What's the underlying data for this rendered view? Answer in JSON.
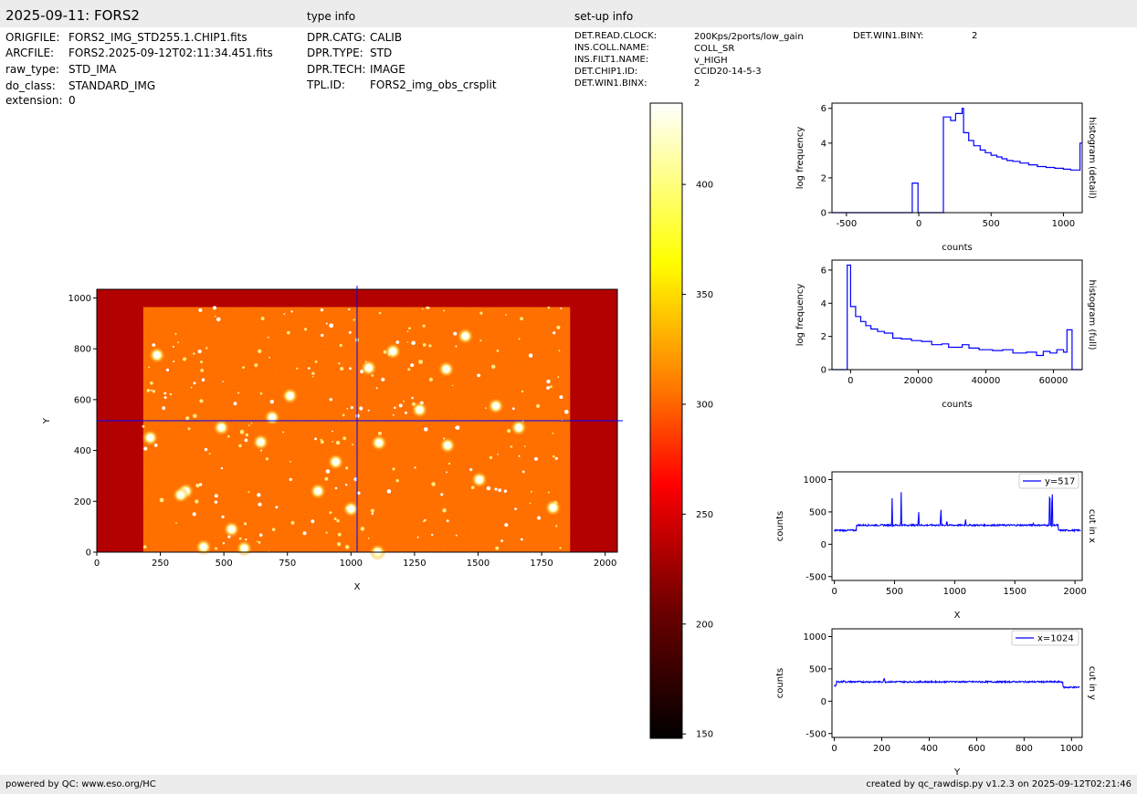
{
  "header": {
    "title": "2025-09-11: FORS2",
    "type_info_heading": "type info",
    "setup_info_heading": "set-up info"
  },
  "file_info": [
    {
      "key": "ORIGFILE:",
      "value": "FORS2_IMG_STD255.1.CHIP1.fits"
    },
    {
      "key": "ARCFILE:",
      "value": "FORS2.2025-09-12T02:11:34.451.fits"
    },
    {
      "key": "raw_type:",
      "value": "STD_IMA"
    },
    {
      "key": "do_class:",
      "value": "STANDARD_IMG"
    },
    {
      "key": "extension:",
      "value": "0"
    }
  ],
  "type_info": [
    {
      "key": "DPR.CATG:",
      "value": "CALIB"
    },
    {
      "key": "DPR.TYPE:",
      "value": "STD"
    },
    {
      "key": "DPR.TECH:",
      "value": "IMAGE"
    },
    {
      "key": "TPL.ID:",
      "value": "FORS2_img_obs_crsplit"
    }
  ],
  "setup_info": [
    {
      "key": "DET.READ.CLOCK:",
      "value": "200Kps/2ports/low_gain"
    },
    {
      "key": "INS.COLL.NAME:",
      "value": "COLL_SR"
    },
    {
      "key": "INS.FILT1.NAME:",
      "value": "v_HIGH"
    },
    {
      "key": "DET.CHIP1.ID:",
      "value": "CCID20-14-5-3"
    },
    {
      "key": "DET.WIN1.BINX:",
      "value": "2"
    }
  ],
  "setup_info_extra": {
    "key": "DET.WIN1.BINY:",
    "value": "2"
  },
  "footer": {
    "left": "powered by QC: www.eso.org/HC",
    "right": "created by qc_rawdisp.py v1.2.3 on 2025-09-12T02:21:46"
  },
  "colors": {
    "band": "#ececec",
    "series": "#0000ff",
    "image_border": "#b30000",
    "image_bg": "#ff6a00"
  },
  "chart_data": [
    {
      "id": "image",
      "type": "heatmap",
      "xlabel": "X",
      "ylabel": "Y",
      "xlim": [
        0,
        2048
      ],
      "ylim": [
        0,
        1034
      ],
      "xticks": [
        0,
        250,
        500,
        750,
        1000,
        1250,
        1500,
        1750,
        2000
      ],
      "yticks": [
        0,
        200,
        400,
        600,
        800,
        1000
      ],
      "illuminated_x": [
        183,
        1862
      ],
      "illuminated_y": [
        0,
        964
      ],
      "crosshair": {
        "x": 1024,
        "y": 517
      },
      "stars": [
        [
          237,
          775
        ],
        [
          490,
          490
        ],
        [
          645,
          433
        ],
        [
          690,
          530
        ],
        [
          350,
          240
        ],
        [
          870,
          240
        ],
        [
          940,
          355
        ],
        [
          1070,
          725
        ],
        [
          1165,
          790
        ],
        [
          1375,
          720
        ],
        [
          1450,
          850
        ],
        [
          1660,
          490
        ],
        [
          1795,
          175
        ],
        [
          1110,
          430
        ],
        [
          530,
          90
        ],
        [
          420,
          20
        ],
        [
          1505,
          285
        ],
        [
          1570,
          575
        ],
        [
          330,
          225
        ],
        [
          760,
          615
        ],
        [
          1270,
          560
        ],
        [
          1380,
          420
        ],
        [
          1000,
          170
        ],
        [
          210,
          450
        ],
        [
          580,
          15
        ],
        [
          1105,
          0
        ]
      ]
    },
    {
      "id": "colorbar",
      "type": "heatmap",
      "range": [
        148,
        437
      ],
      "ticks": [
        150,
        200,
        250,
        300,
        350,
        400
      ],
      "colormap": "hot"
    },
    {
      "id": "hist_detail",
      "type": "line",
      "xlabel": "counts",
      "ylabel": "log frequency",
      "right_label": "histogram (detail)",
      "xlim": [
        -600,
        1130
      ],
      "ylim": [
        0,
        6.3
      ],
      "xticks": [
        -500,
        0,
        500,
        1000
      ],
      "yticks": [
        0,
        2,
        4,
        6
      ],
      "series": [
        {
          "step": true,
          "x": [
            -600,
            -45,
            -45,
            -5,
            -5,
            170,
            170,
            220,
            220,
            255,
            255,
            300,
            300,
            310,
            310,
            345,
            345,
            380,
            380,
            425,
            425,
            460,
            460,
            500,
            500,
            540,
            540,
            575,
            575,
            610,
            610,
            650,
            650,
            700,
            700,
            760,
            760,
            820,
            820,
            880,
            880,
            940,
            940,
            1000,
            1000,
            1050,
            1050,
            1100,
            1100,
            1115,
            1115,
            1130
          ],
          "y": [
            0,
            0,
            1.7,
            1.7,
            0,
            0,
            5.5,
            5.5,
            5.3,
            5.3,
            5.7,
            5.7,
            6.0,
            6.0,
            4.6,
            4.6,
            4.15,
            4.15,
            3.85,
            3.85,
            3.6,
            3.6,
            3.45,
            3.45,
            3.3,
            3.3,
            3.2,
            3.2,
            3.1,
            3.1,
            3.0,
            3.0,
            2.95,
            2.95,
            2.85,
            2.85,
            2.75,
            2.75,
            2.65,
            2.65,
            2.6,
            2.6,
            2.55,
            2.55,
            2.5,
            2.5,
            2.45,
            2.45,
            2.45,
            2.45,
            4.0,
            4.0
          ]
        }
      ]
    },
    {
      "id": "hist_full",
      "type": "line",
      "xlabel": "counts",
      "ylabel": "log frequency",
      "right_label": "histogram (full)",
      "xlim": [
        -5500,
        68500
      ],
      "ylim": [
        0,
        6.6
      ],
      "xticks": [
        0,
        20000,
        40000,
        60000
      ],
      "yticks": [
        0,
        2,
        4,
        6
      ],
      "series": [
        {
          "step": true,
          "x": [
            -5500,
            -1000,
            -1000,
            0,
            0,
            1500,
            1500,
            3000,
            3000,
            4500,
            4500,
            6000,
            6000,
            8000,
            8000,
            10000,
            10000,
            12500,
            12500,
            15000,
            15000,
            18000,
            18000,
            21000,
            21000,
            24000,
            24000,
            27000,
            27000,
            29000,
            29000,
            33000,
            33000,
            35000,
            35000,
            38000,
            38000,
            42000,
            42000,
            45000,
            45000,
            48000,
            48000,
            52000,
            52000,
            55000,
            55000,
            57000,
            57000,
            59000,
            59000,
            61000,
            61000,
            63000,
            63000,
            64000,
            64000,
            65500,
            65500,
            68500
          ],
          "y": [
            0,
            0,
            6.3,
            6.3,
            3.8,
            3.8,
            3.2,
            3.2,
            2.9,
            2.9,
            2.65,
            2.65,
            2.45,
            2.45,
            2.3,
            2.3,
            2.2,
            2.2,
            1.9,
            1.9,
            1.85,
            1.85,
            1.75,
            1.75,
            1.7,
            1.7,
            1.5,
            1.5,
            1.55,
            1.55,
            1.35,
            1.35,
            1.5,
            1.5,
            1.3,
            1.3,
            1.2,
            1.2,
            1.15,
            1.15,
            1.2,
            1.2,
            1.0,
            1.0,
            1.05,
            1.05,
            0.85,
            0.85,
            1.1,
            1.1,
            1.0,
            1.0,
            1.2,
            1.2,
            1.05,
            1.05,
            2.4,
            2.4,
            0,
            0
          ]
        }
      ]
    },
    {
      "id": "cut_x",
      "type": "line",
      "xlabel": "X",
      "ylabel": "counts",
      "right_label": "cut in x",
      "legend": "y=517",
      "legend_position": "top-right",
      "xlim": [
        -20,
        2060
      ],
      "ylim": [
        -560,
        1120
      ],
      "xticks": [
        0,
        500,
        1000,
        1500,
        2000
      ],
      "yticks": [
        -500,
        0,
        500,
        1000
      ],
      "baseline": {
        "left": [
          0,
          183,
          215
        ],
        "mid": 295,
        "right": [
          1862,
          2048,
          215
        ]
      },
      "peaks": [
        [
          480,
          770
        ],
        [
          555,
          850
        ],
        [
          700,
          570
        ],
        [
          885,
          630
        ],
        [
          935,
          390
        ],
        [
          1090,
          410
        ],
        [
          1790,
          1120
        ],
        [
          1810,
          1120
        ],
        [
          1655,
          330
        ]
      ]
    },
    {
      "id": "cut_y",
      "type": "line",
      "xlabel": "Y",
      "ylabel": "counts",
      "right_label": "cut in y",
      "legend": "x=1024",
      "legend_position": "top-right",
      "xlim": [
        -10,
        1045
      ],
      "ylim": [
        -560,
        1120
      ],
      "xticks": [
        0,
        200,
        400,
        600,
        800,
        1000
      ],
      "yticks": [
        -500,
        0,
        500,
        1000
      ],
      "baseline": {
        "start": [
          0,
          240
        ],
        "mid": 300,
        "end_x": 964,
        "end": 215
      },
      "peaks": [
        [
          210,
          360
        ],
        [
          40,
          320
        ],
        [
          500,
          310
        ]
      ]
    }
  ]
}
